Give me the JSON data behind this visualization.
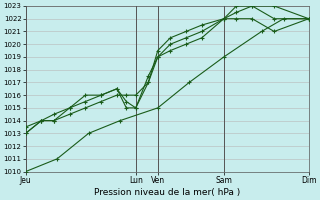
{
  "xlabel": "Pression niveau de la mer( hPa )",
  "ylim": [
    1010,
    1023
  ],
  "yticks": [
    1010,
    1011,
    1012,
    1013,
    1014,
    1015,
    1016,
    1017,
    1018,
    1019,
    1020,
    1021,
    1022,
    1023
  ],
  "bg_color": "#c8eded",
  "grid_color_h": "#c0c0c0",
  "grid_color_v": "#c0c0c0",
  "line_color": "#1a5c1a",
  "marker_color": "#1a5c1a",
  "day_positions": [
    0,
    3.5,
    4.2,
    6.3,
    9.0
  ],
  "day_labels": [
    "Jeu",
    "Lun",
    "Ven",
    "Sam",
    "Dim"
  ],
  "vline_positions": [
    0,
    3.5,
    4.2,
    6.3,
    9.0
  ],
  "series": [
    {
      "x": [
        0,
        0.5,
        0.9,
        1.4,
        1.9,
        2.4,
        2.9,
        3.2,
        3.5,
        3.9,
        4.2,
        4.6,
        5.1,
        5.6,
        6.3,
        6.7,
        7.2,
        7.9,
        9.0
      ],
      "y": [
        1013,
        1014,
        1014,
        1014.5,
        1015,
        1015.5,
        1016,
        1016,
        1016,
        1017,
        1019,
        1019.5,
        1020,
        1020.5,
        1022,
        1022,
        1022,
        1021,
        1022
      ]
    },
    {
      "x": [
        0,
        0.5,
        0.9,
        1.4,
        1.9,
        2.4,
        2.9,
        3.2,
        3.5,
        3.9,
        4.2,
        4.6,
        5.1,
        5.6,
        6.3,
        6.7,
        7.2,
        7.9,
        9.0
      ],
      "y": [
        1013,
        1014,
        1014,
        1015,
        1015.5,
        1016,
        1016.5,
        1015,
        1015,
        1017,
        1019.5,
        1020.5,
        1021,
        1021.5,
        1022,
        1022.5,
        1023,
        1023,
        1022
      ]
    },
    {
      "x": [
        0,
        0.5,
        0.9,
        1.4,
        1.9,
        2.4,
        2.9,
        3.2,
        3.5,
        3.9,
        4.2,
        4.6,
        5.1,
        5.6,
        6.3,
        6.7,
        7.2,
        7.9,
        9.0
      ],
      "y": [
        1013.5,
        1014,
        1014.5,
        1015,
        1016,
        1016,
        1016.5,
        1015.5,
        1015,
        1017.5,
        1019,
        1020,
        1020.5,
        1021,
        1022,
        1023,
        1023,
        1022,
        1022
      ]
    },
    {
      "x": [
        0,
        1.0,
        2.0,
        3.0,
        4.2,
        5.2,
        6.3,
        7.5,
        8.2,
        9.0
      ],
      "y": [
        1010,
        1011,
        1013,
        1014,
        1015,
        1017,
        1019,
        1021,
        1022,
        1022
      ]
    }
  ],
  "xmin": 0,
  "xmax": 9.0
}
